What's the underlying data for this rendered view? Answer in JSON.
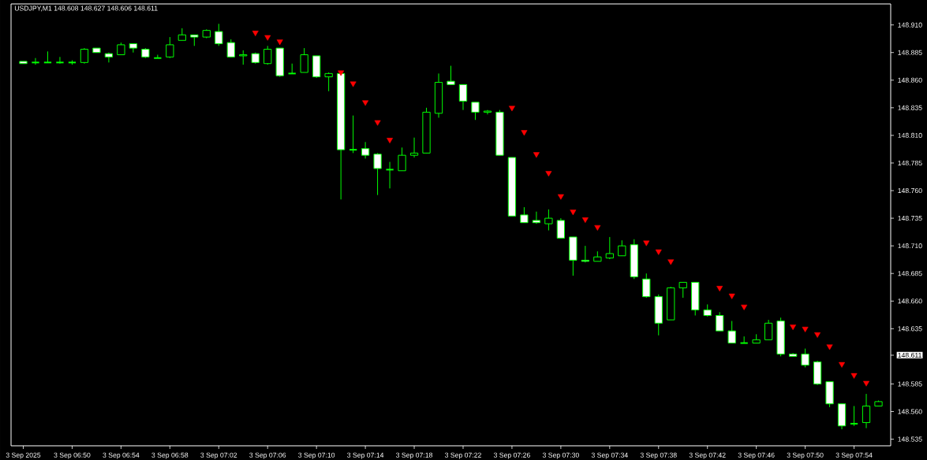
{
  "chart_data": {
    "type": "candlestick",
    "title": "USDJPY,M1  148.608 148.627 148.606 148.611",
    "xlim": [
      "2025-09-03T06:45",
      "2025-09-03T07:57"
    ],
    "ylim": [
      148.529,
      148.929
    ],
    "xticks": [
      {
        "value": "2025-09-03T06:46",
        "label": "3 Sep 2025"
      },
      {
        "value": "2025-09-03T06:50",
        "label": "3 Sep 06:50"
      },
      {
        "value": "2025-09-03T06:54",
        "label": "3 Sep 06:54"
      },
      {
        "value": "2025-09-03T06:58",
        "label": "3 Sep 06:58"
      },
      {
        "value": "2025-09-03T07:02",
        "label": "3 Sep 07:02"
      },
      {
        "value": "2025-09-03T07:06",
        "label": "3 Sep 07:06"
      },
      {
        "value": "2025-09-03T07:10",
        "label": "3 Sep 07:10"
      },
      {
        "value": "2025-09-03T07:14",
        "label": "3 Sep 07:14"
      },
      {
        "value": "2025-09-03T07:18",
        "label": "3 Sep 07:18"
      },
      {
        "value": "2025-09-03T07:22",
        "label": "3 Sep 07:22"
      },
      {
        "value": "2025-09-03T07:26",
        "label": "3 Sep 07:26"
      },
      {
        "value": "2025-09-03T07:30",
        "label": "3 Sep 07:30"
      },
      {
        "value": "2025-09-03T07:34",
        "label": "3 Sep 07:34"
      },
      {
        "value": "2025-09-03T07:38",
        "label": "3 Sep 07:38"
      },
      {
        "value": "2025-09-03T07:42",
        "label": "3 Sep 07:42"
      },
      {
        "value": "2025-09-03T07:46",
        "label": "3 Sep 07:46"
      },
      {
        "value": "2025-09-03T07:50",
        "label": "3 Sep 07:50"
      },
      {
        "value": "2025-09-03T07:54",
        "label": "3 Sep 07:54"
      }
    ],
    "yticks": [
      {
        "value": 148.535,
        "label": "148.535"
      },
      {
        "value": 148.56,
        "label": "148.560"
      },
      {
        "value": 148.585,
        "label": "148.585"
      },
      {
        "value": 148.611,
        "label": "148.611"
      },
      {
        "value": 148.635,
        "label": "148.635"
      },
      {
        "value": 148.66,
        "label": "148.660"
      },
      {
        "value": 148.685,
        "label": "148.685"
      },
      {
        "value": 148.71,
        "label": "148.710"
      },
      {
        "value": 148.735,
        "label": "148.735"
      },
      {
        "value": 148.76,
        "label": "148.760"
      },
      {
        "value": 148.785,
        "label": "148.785"
      },
      {
        "value": 148.81,
        "label": "148.810"
      },
      {
        "value": 148.835,
        "label": "148.835"
      },
      {
        "value": 148.86,
        "label": "148.860"
      },
      {
        "value": 148.885,
        "label": "148.885"
      },
      {
        "value": 148.91,
        "label": "148.910"
      }
    ],
    "series": [
      {
        "color": "#00ff00",
        "x": [
          "2025-09-03T06:46",
          "2025-09-03T06:47",
          "2025-09-03T06:48",
          "2025-09-03T06:49",
          "2025-09-03T06:50",
          "2025-09-03T06:51",
          "2025-09-03T06:52",
          "2025-09-03T06:53",
          "2025-09-03T06:54",
          "2025-09-03T06:55",
          "2025-09-03T06:56",
          "2025-09-03T06:57",
          "2025-09-03T06:58",
          "2025-09-03T06:59",
          "2025-09-03T07:00",
          "2025-09-03T07:01",
          "2025-09-03T07:02",
          "2025-09-03T07:03",
          "2025-09-03T07:04",
          "2025-09-03T07:05",
          "2025-09-03T07:06",
          "2025-09-03T07:07",
          "2025-09-03T07:08",
          "2025-09-03T07:09",
          "2025-09-03T07:10",
          "2025-09-03T07:11",
          "2025-09-03T07:12",
          "2025-09-03T07:13",
          "2025-09-03T07:14",
          "2025-09-03T07:15",
          "2025-09-03T07:16",
          "2025-09-03T07:17",
          "2025-09-03T07:18",
          "2025-09-03T07:19",
          "2025-09-03T07:20",
          "2025-09-03T07:21",
          "2025-09-03T07:22",
          "2025-09-03T07:23",
          "2025-09-03T07:24",
          "2025-09-03T07:25",
          "2025-09-03T07:26",
          "2025-09-03T07:27",
          "2025-09-03T07:28",
          "2025-09-03T07:29",
          "2025-09-03T07:30",
          "2025-09-03T07:31",
          "2025-09-03T07:32",
          "2025-09-03T07:33",
          "2025-09-03T07:34",
          "2025-09-03T07:35",
          "2025-09-03T07:36",
          "2025-09-03T07:37",
          "2025-09-03T07:38",
          "2025-09-03T07:39",
          "2025-09-03T07:40",
          "2025-09-03T07:41",
          "2025-09-03T07:42",
          "2025-09-03T07:43",
          "2025-09-03T07:44",
          "2025-09-03T07:45",
          "2025-09-03T07:46",
          "2025-09-03T07:47",
          "2025-09-03T07:48",
          "2025-09-03T07:49",
          "2025-09-03T07:50",
          "2025-09-03T07:51",
          "2025-09-03T07:52",
          "2025-09-03T07:53",
          "2025-09-03T07:54",
          "2025-09-03T07:55",
          "2025-09-03T07:56"
        ],
        "ohlc": [
          [
            148.877,
            148.877,
            148.875,
            148.875
          ],
          [
            148.876,
            148.88,
            148.874,
            148.876
          ],
          [
            148.876,
            148.886,
            148.876,
            148.876
          ],
          [
            148.876,
            148.881,
            148.875,
            148.876
          ],
          [
            148.876,
            148.878,
            148.874,
            148.876
          ],
          [
            148.876,
            148.889,
            148.875,
            148.888
          ],
          [
            148.889,
            148.889,
            148.885,
            148.885
          ],
          [
            148.884,
            148.885,
            148.876,
            148.881
          ],
          [
            148.883,
            148.894,
            148.883,
            148.892
          ],
          [
            148.893,
            148.893,
            148.885,
            148.889
          ],
          [
            148.888,
            148.889,
            148.88,
            148.881
          ],
          [
            148.88,
            148.883,
            148.88,
            148.88
          ],
          [
            148.881,
            148.899,
            148.88,
            148.892
          ],
          [
            148.896,
            148.907,
            148.896,
            148.901
          ],
          [
            148.901,
            148.901,
            148.891,
            148.899
          ],
          [
            148.899,
            148.906,
            148.898,
            148.905
          ],
          [
            148.904,
            148.911,
            148.891,
            148.893
          ],
          [
            148.894,
            148.897,
            148.881,
            148.881
          ],
          [
            148.882,
            148.887,
            148.874,
            148.883
          ],
          [
            148.884,
            148.885,
            148.875,
            148.876
          ],
          [
            148.875,
            148.891,
            148.874,
            148.888
          ],
          [
            148.889,
            148.889,
            148.863,
            148.864
          ],
          [
            148.866,
            148.875,
            148.866,
            148.866
          ],
          [
            148.867,
            148.889,
            148.867,
            148.883
          ],
          [
            148.882,
            148.882,
            148.862,
            148.863
          ],
          [
            148.863,
            148.867,
            148.85,
            148.866
          ],
          [
            148.866,
            148.866,
            148.752,
            148.797
          ],
          [
            148.797,
            148.828,
            148.794,
            148.797
          ],
          [
            148.798,
            148.804,
            148.789,
            148.792
          ],
          [
            148.793,
            148.794,
            148.756,
            148.78
          ],
          [
            148.779,
            148.786,
            148.762,
            148.779
          ],
          [
            148.778,
            148.799,
            148.778,
            148.792
          ],
          [
            148.792,
            148.808,
            148.79,
            148.794
          ],
          [
            148.794,
            148.835,
            148.794,
            148.831
          ],
          [
            148.83,
            148.866,
            148.826,
            148.858
          ],
          [
            148.859,
            148.873,
            148.856,
            148.856
          ],
          [
            148.856,
            148.856,
            148.833,
            148.841
          ],
          [
            148.84,
            148.84,
            148.824,
            148.831
          ],
          [
            148.831,
            148.833,
            148.829,
            148.832
          ],
          [
            148.831,
            148.833,
            148.792,
            148.792
          ],
          [
            148.79,
            148.79,
            148.737,
            148.737
          ],
          [
            148.738,
            148.745,
            148.731,
            148.731
          ],
          [
            148.733,
            148.741,
            148.73,
            148.731
          ],
          [
            148.73,
            148.743,
            148.724,
            148.735
          ],
          [
            148.733,
            148.735,
            148.717,
            148.717
          ],
          [
            148.718,
            148.718,
            148.683,
            148.697
          ],
          [
            148.697,
            148.71,
            148.695,
            148.696
          ],
          [
            148.696,
            148.705,
            148.696,
            148.7
          ],
          [
            148.699,
            148.718,
            148.698,
            148.703
          ],
          [
            148.701,
            148.715,
            148.701,
            148.71
          ],
          [
            148.711,
            148.716,
            148.68,
            148.682
          ],
          [
            148.68,
            148.685,
            148.663,
            148.664
          ],
          [
            148.664,
            148.666,
            148.629,
            148.64
          ],
          [
            148.643,
            148.673,
            148.643,
            148.672
          ],
          [
            148.672,
            148.677,
            148.663,
            148.677
          ],
          [
            148.677,
            148.677,
            148.647,
            148.652
          ],
          [
            148.652,
            148.657,
            148.646,
            148.647
          ],
          [
            148.647,
            148.65,
            148.633,
            148.633
          ],
          [
            148.633,
            148.642,
            148.622,
            148.622
          ],
          [
            148.622,
            148.628,
            148.622,
            148.622
          ],
          [
            148.622,
            148.63,
            148.622,
            148.625
          ],
          [
            148.625,
            148.643,
            148.625,
            148.64
          ],
          [
            148.642,
            148.645,
            148.61,
            148.612
          ],
          [
            148.612,
            148.613,
            148.61,
            148.61
          ],
          [
            148.612,
            148.617,
            148.6,
            148.602
          ],
          [
            148.605,
            148.606,
            148.584,
            148.585
          ],
          [
            148.587,
            148.587,
            148.564,
            148.567
          ],
          [
            148.567,
            148.567,
            148.544,
            148.547
          ],
          [
            148.549,
            148.565,
            148.547,
            148.549
          ],
          [
            148.55,
            148.576,
            148.545,
            148.565
          ],
          [
            148.565,
            148.57,
            148.565,
            148.569
          ]
        ]
      },
      {
        "type": "scatter",
        "color": "#ff0000",
        "marker": "triangle",
        "x": [
          "2025-09-03T07:05",
          "2025-09-03T07:06",
          "2025-09-03T07:07",
          "2025-09-03T07:12",
          "2025-09-03T07:13",
          "2025-09-03T07:14",
          "2025-09-03T07:15",
          "2025-09-03T07:16",
          "2025-09-03T07:26",
          "2025-09-03T07:27",
          "2025-09-03T07:28",
          "2025-09-03T07:29",
          "2025-09-03T07:30",
          "2025-09-03T07:31",
          "2025-09-03T07:32",
          "2025-09-03T07:33",
          "2025-09-03T07:37",
          "2025-09-03T07:38",
          "2025-09-03T07:39",
          "2025-09-03T07:43",
          "2025-09-03T07:44",
          "2025-09-03T07:45",
          "2025-09-03T07:49",
          "2025-09-03T07:50",
          "2025-09-03T07:51",
          "2025-09-03T07:52",
          "2025-09-03T07:53",
          "2025-09-03T07:54",
          "2025-09-03T07:55"
        ],
        "values": [
          148.903,
          148.899,
          148.895,
          148.867,
          148.857,
          148.84,
          148.822,
          148.806,
          148.835,
          148.813,
          148.793,
          148.776,
          148.755,
          148.741,
          148.734,
          148.727,
          148.713,
          148.705,
          148.696,
          148.672,
          148.665,
          148.655,
          148.637,
          148.635,
          148.63,
          148.619,
          148.603,
          148.593,
          148.586
        ]
      }
    ]
  }
}
